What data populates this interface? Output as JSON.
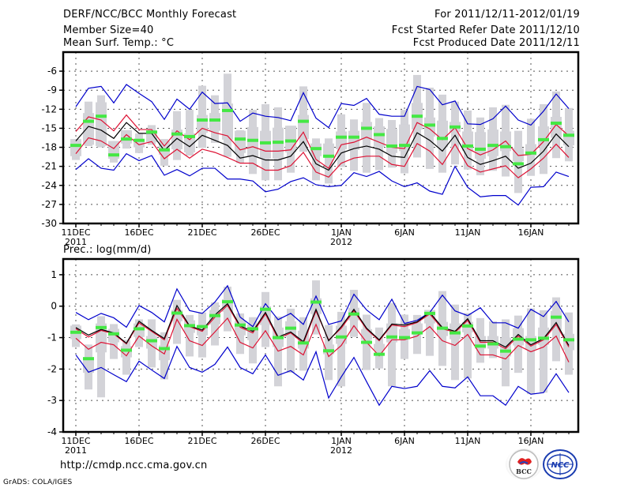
{
  "header": {
    "title": "DERF/NCC/BCC Monthly Forecast",
    "member_size": "Member Size=40",
    "variable_top": "Mean Surf. Temp.: °C",
    "period": "For 2011/12/11-2012/01/19",
    "start_date": "Fcst Started Refer Date 2011/12/10",
    "produced_date": "Fcst Produced Date 2011/12/11"
  },
  "footer": {
    "url": "http://cmdp.ncc.cma.gov.cn",
    "credit": "GrADS: COLA/IGES",
    "logos": [
      "BCC",
      "NCC"
    ]
  },
  "colors": {
    "spread_outer": "#0000cc",
    "spread_inner": "#dd1133",
    "mean": "#000000",
    "box": "#d3d3d8",
    "marker": "#44e844",
    "grid": "#555555"
  },
  "chart_data": [
    {
      "type": "line",
      "title": "Mean Surf. Temp.: °C",
      "xlabel": "",
      "ylabel": "",
      "ylim": [
        -30,
        -3
      ],
      "yticks": [
        -6,
        -9,
        -12,
        -15,
        -18,
        -21,
        -24,
        -27,
        -30
      ],
      "xticks": [
        {
          "day": 1,
          "label": "11DEC",
          "sub": "2011"
        },
        {
          "day": 6,
          "label": "16DEC",
          "sub": ""
        },
        {
          "day": 11,
          "label": "21DEC",
          "sub": ""
        },
        {
          "day": 16,
          "label": "26DEC",
          "sub": ""
        },
        {
          "day": 22,
          "label": "1JAN",
          "sub": "2012"
        },
        {
          "day": 27,
          "label": "6JAN",
          "sub": ""
        },
        {
          "day": 32,
          "label": "11JAN",
          "sub": ""
        },
        {
          "day": 37,
          "label": "16JAN",
          "sub": ""
        }
      ],
      "grid": true,
      "days": 40,
      "series": [
        {
          "name": "upper-outer",
          "color": "blue",
          "values": [
            -11.6,
            -8.7,
            -8.4,
            -11.0,
            -8.1,
            -9.5,
            -10.8,
            -13.6,
            -10.4,
            -12.0,
            -9.3,
            -11.1,
            -11.0,
            -13.9,
            -12.6,
            -13.1,
            -13.3,
            -13.8,
            -9.4,
            -13.4,
            -14.9,
            -11.1,
            -11.4,
            -10.3,
            -12.8,
            -13.1,
            -13.1,
            -8.4,
            -8.9,
            -11.3,
            -10.7,
            -14.3,
            -14.4,
            -13.5,
            -11.5,
            -13.7,
            -14.5,
            -12.3,
            -9.6,
            -11.9
          ]
        },
        {
          "name": "upper-inner",
          "color": "red",
          "values": [
            -15.5,
            -13.2,
            -13.7,
            -15.4,
            -12.9,
            -15.2,
            -15.2,
            -17.8,
            -15.4,
            -16.8,
            -15.0,
            -15.7,
            -16.2,
            -18.4,
            -17.9,
            -18.6,
            -18.6,
            -18.4,
            -15.6,
            -19.9,
            -21.3,
            -17.6,
            -17.2,
            -16.4,
            -17.2,
            -18.0,
            -18.2,
            -14.1,
            -15.1,
            -16.8,
            -14.9,
            -18.2,
            -19.2,
            -18.4,
            -17.0,
            -19.3,
            -19.1,
            -17.1,
            -14.4,
            -16.2
          ]
        },
        {
          "name": "ensemble-mean",
          "color": "black",
          "values": [
            -17.0,
            -14.7,
            -15.3,
            -16.6,
            -14.1,
            -15.8,
            -15.8,
            -18.5,
            -16.6,
            -17.9,
            -16.1,
            -16.9,
            -17.7,
            -19.7,
            -19.3,
            -20.0,
            -20.0,
            -19.4,
            -17.1,
            -20.6,
            -21.6,
            -18.9,
            -18.2,
            -17.8,
            -18.3,
            -19.4,
            -19.6,
            -15.7,
            -16.9,
            -18.6,
            -16.1,
            -19.6,
            -20.7,
            -20.1,
            -19.4,
            -21.3,
            -20.5,
            -18.6,
            -15.9,
            -17.9
          ]
        },
        {
          "name": "lower-inner",
          "color": "red",
          "values": [
            -19.0,
            -16.5,
            -17.0,
            -18.2,
            -16.0,
            -17.6,
            -17.1,
            -19.8,
            -18.3,
            -19.7,
            -18.3,
            -18.8,
            -19.6,
            -20.5,
            -20.5,
            -21.6,
            -21.6,
            -20.9,
            -18.8,
            -21.9,
            -22.7,
            -20.5,
            -19.7,
            -19.4,
            -19.4,
            -20.7,
            -21.0,
            -17.4,
            -18.6,
            -20.7,
            -17.5,
            -20.9,
            -21.9,
            -21.4,
            -20.9,
            -22.8,
            -21.4,
            -19.7,
            -17.5,
            -19.6
          ]
        },
        {
          "name": "lower-outer",
          "color": "blue",
          "values": [
            -21.5,
            -19.8,
            -21.3,
            -21.6,
            -19.0,
            -20.1,
            -19.3,
            -22.4,
            -21.5,
            -22.5,
            -21.3,
            -21.3,
            -23.0,
            -23.0,
            -23.3,
            -25.0,
            -24.6,
            -23.4,
            -22.8,
            -23.9,
            -24.2,
            -24.0,
            -22.0,
            -22.6,
            -21.8,
            -23.3,
            -24.2,
            -23.6,
            -24.9,
            -25.4,
            -21.0,
            -24.3,
            -25.8,
            -25.6,
            -25.6,
            -27.1,
            -24.3,
            -24.2,
            -21.9,
            -22.6
          ]
        }
      ],
      "boxes": {
        "description": "Gray bars: thin whisker range and wider inter-quartile range per day; green bar is the observed/median marker",
        "whisker_low": [
          -20.0,
          -17.8,
          -18.0,
          -20.4,
          -18.2,
          -18.9,
          -17.6,
          -20.9,
          -20.0,
          -19.3,
          -18.1,
          -17.3,
          -19.5,
          -20.5,
          -22.2,
          -23.2,
          -23.2,
          -22.0,
          -18.7,
          -23.2,
          -23.7,
          -21.1,
          -21.7,
          -22.0,
          -21.6,
          -21.2,
          -22.1,
          -19.6,
          -21.4,
          -22.0,
          -20.7,
          -21.5,
          -22.4,
          -21.7,
          -22.6,
          -25.2,
          -22.5,
          -22.2,
          -19.7,
          -20.2
        ],
        "whisker_high": [
          -16.7,
          -10.8,
          -9.8,
          -17.0,
          -15.3,
          -15.8,
          -14.5,
          -16.7,
          -12.3,
          -12.1,
          -8.3,
          -9.8,
          -6.4,
          -15.3,
          -12.1,
          -11.2,
          -11.7,
          -14.6,
          -8.4,
          -16.6,
          -16.6,
          -12.8,
          -13.6,
          -11.0,
          -13.4,
          -13.7,
          -12.1,
          -6.6,
          -8.6,
          -9.7,
          -10.8,
          -12.2,
          -13.3,
          -11.7,
          -11.3,
          -15.4,
          -13.5,
          -11.2,
          -9.2,
          -11.8
        ],
        "q1": [
          -19.4,
          -17.6,
          -17.8,
          -19.8,
          -17.4,
          -18.0,
          -17.2,
          -19.2,
          -18.3,
          -18.8,
          -15.7,
          -15.4,
          -16.8,
          -18.9,
          -19.5,
          -19.8,
          -19.8,
          -18.8,
          -16.7,
          -19.4,
          -19.6,
          -18.3,
          -18.4,
          -16.8,
          -17.9,
          -18.9,
          -18.6,
          -15.2,
          -16.3,
          -18.0,
          -15.6,
          -18.6,
          -19.8,
          -19.4,
          -18.6,
          -20.2,
          -19.3,
          -17.8,
          -16.5,
          -17.7
        ],
        "q3": [
          -16.7,
          -12.6,
          -10.9,
          -17.0,
          -15.3,
          -16.7,
          -15.4,
          -17.0,
          -15.2,
          -15.8,
          -12.9,
          -12.6,
          -11.1,
          -15.4,
          -14.8,
          -15.4,
          -14.9,
          -14.6,
          -12.9,
          -17.4,
          -17.4,
          -15.5,
          -15.4,
          -14.0,
          -14.7,
          -15.1,
          -14.4,
          -11.0,
          -13.3,
          -13.8,
          -14.0,
          -15.5,
          -15.6,
          -15.2,
          -15.5,
          -18.1,
          -17.5,
          -14.7,
          -13.2,
          -15.4
        ],
        "marker": [
          -17.7,
          -13.9,
          -13.1,
          -19.2,
          -16.7,
          -16.9,
          -15.6,
          -18.4,
          -15.9,
          -16.3,
          -13.7,
          -13.7,
          -12.2,
          -16.7,
          -16.9,
          -17.3,
          -17.2,
          -17.0,
          -13.9,
          -18.2,
          -19.4,
          -16.4,
          -16.4,
          -15.0,
          -16.0,
          -17.8,
          -17.7,
          -13.1,
          -14.5,
          -16.6,
          -14.8,
          -17.8,
          -18.3,
          -17.7,
          -17.9,
          -20.6,
          -18.9,
          -16.8,
          -14.2,
          -16.1
        ]
      }
    },
    {
      "type": "line",
      "title": "Prec.: log(mm/d)",
      "xlabel": "",
      "ylabel": "",
      "ylim": [
        -4,
        1.5
      ],
      "yticks": [
        1,
        0,
        -1,
        -2,
        -3,
        -4
      ],
      "xticks": [
        {
          "day": 1,
          "label": "11DEC",
          "sub": "2011"
        },
        {
          "day": 6,
          "label": "16DEC",
          "sub": ""
        },
        {
          "day": 11,
          "label": "21DEC",
          "sub": ""
        },
        {
          "day": 16,
          "label": "26DEC",
          "sub": ""
        },
        {
          "day": 22,
          "label": "1JAN",
          "sub": "2012"
        },
        {
          "day": 27,
          "label": "6JAN",
          "sub": ""
        },
        {
          "day": 32,
          "label": "11JAN",
          "sub": ""
        },
        {
          "day": 37,
          "label": "16JAN",
          "sub": ""
        }
      ],
      "grid": true,
      "days": 40,
      "series": [
        {
          "name": "upper-outer",
          "color": "blue",
          "values": [
            -0.2,
            -0.43,
            -0.23,
            -0.37,
            -0.67,
            0.02,
            -0.2,
            -0.5,
            0.55,
            -0.14,
            -0.23,
            0.13,
            0.65,
            -0.35,
            -0.65,
            0.08,
            -0.43,
            -0.23,
            -0.58,
            0.32,
            -0.58,
            -0.47,
            0.38,
            -0.12,
            -0.43,
            0.22,
            -0.55,
            -0.45,
            -0.2,
            0.35,
            -0.15,
            -0.3,
            -0.05,
            -0.53,
            -0.53,
            -0.7,
            -0.1,
            -0.33,
            0.15,
            -0.5
          ]
        },
        {
          "name": "upper-inner",
          "color": "red",
          "values": [
            -0.72,
            -0.98,
            -0.77,
            -0.88,
            -1.2,
            -0.53,
            -0.8,
            -1.07,
            -0.07,
            -0.65,
            -0.8,
            -0.35,
            0.03,
            -0.67,
            -0.85,
            -0.25,
            -1.03,
            -0.85,
            -1.18,
            -0.15,
            -1.08,
            -0.7,
            -0.15,
            -0.73,
            -1.1,
            -0.6,
            -0.65,
            -0.52,
            -0.25,
            -0.72,
            -0.83,
            -0.45,
            -1.15,
            -1.15,
            -1.35,
            -0.95,
            -1.27,
            -1.07,
            -0.58,
            -1.3
          ]
        },
        {
          "name": "ensemble-mean",
          "color": "black",
          "values": [
            -0.68,
            -0.92,
            -0.74,
            -0.85,
            -1.18,
            -0.48,
            -0.77,
            -1.03,
            0.02,
            -0.63,
            -0.76,
            -0.28,
            0.08,
            -0.63,
            -0.8,
            -0.2,
            -0.98,
            -0.82,
            -1.13,
            -0.1,
            -1.1,
            -0.65,
            -0.1,
            -0.7,
            -1.07,
            -0.57,
            -0.6,
            -0.5,
            -0.2,
            -0.68,
            -0.8,
            -0.4,
            -1.1,
            -1.1,
            -1.3,
            -0.9,
            -1.23,
            -1.03,
            -0.52,
            -1.25
          ]
        },
        {
          "name": "lower-inner",
          "color": "red",
          "values": [
            -1.02,
            -1.37,
            -1.15,
            -1.23,
            -1.58,
            -0.95,
            -1.26,
            -1.52,
            -0.42,
            -1.1,
            -1.25,
            -0.82,
            -0.38,
            -1.15,
            -1.33,
            -0.78,
            -1.43,
            -1.28,
            -1.55,
            -0.58,
            -1.6,
            -1.25,
            -0.62,
            -1.15,
            -1.58,
            -1.07,
            -1.07,
            -0.95,
            -0.65,
            -1.1,
            -1.25,
            -0.9,
            -1.55,
            -1.55,
            -1.68,
            -1.25,
            -1.45,
            -1.3,
            -0.95,
            -1.78
          ]
        },
        {
          "name": "lower-outer",
          "color": "blue",
          "values": [
            -1.55,
            -2.1,
            -1.95,
            -2.18,
            -2.4,
            -1.75,
            -2.03,
            -2.3,
            -1.28,
            -1.95,
            -2.1,
            -1.85,
            -1.3,
            -1.95,
            -2.15,
            -1.55,
            -2.2,
            -2.05,
            -2.35,
            -1.45,
            -2.92,
            -2.25,
            -1.63,
            -2.4,
            -3.15,
            -2.55,
            -2.62,
            -2.55,
            -2.05,
            -2.55,
            -2.6,
            -2.25,
            -2.85,
            -2.85,
            -3.15,
            -2.55,
            -2.8,
            -2.75,
            -2.15,
            -2.75
          ]
        },
        {
          "name": "reference",
          "color": "black",
          "values": []
        }
      ],
      "boxes": {
        "description": "Gray bars: whisker range and inter-quartile range per day; green bar marker",
        "whisker_low": [
          -1.3,
          -2.65,
          -2.9,
          -1.68,
          -2.18,
          -1.3,
          -1.95,
          -2.33,
          -1.2,
          -1.6,
          -1.63,
          -1.25,
          -0.8,
          -1.52,
          -1.82,
          -1.3,
          -2.55,
          -2.12,
          -2.05,
          -0.9,
          -2.35,
          -2.55,
          -0.98,
          -2.03,
          -1.98,
          -2.55,
          -1.68,
          -1.52,
          -1.58,
          -1.9,
          -2.35,
          -2.3,
          -1.8,
          -1.65,
          -2.55,
          -2.12,
          -2.8,
          -2.75,
          -1.75,
          -2.18
        ],
        "whisker_high": [
          -0.58,
          -1.22,
          -0.32,
          -0.57,
          -1.07,
          -0.42,
          -0.42,
          -0.83,
          0.2,
          -0.28,
          -0.2,
          0.12,
          0.62,
          -0.23,
          -0.35,
          0.45,
          -0.33,
          -0.08,
          -0.35,
          0.82,
          -0.6,
          -0.18,
          0.52,
          -0.27,
          -0.68,
          0.1,
          -0.27,
          -0.28,
          -0.15,
          0.48,
          0.05,
          -0.22,
          -0.38,
          -0.48,
          -0.42,
          -0.3,
          -0.07,
          -0.13,
          0.28,
          -0.2
        ],
        "q1": [
          -1.05,
          -2.12,
          -1.47,
          -1.15,
          -1.63,
          -0.98,
          -1.35,
          -1.72,
          -0.48,
          -0.85,
          -0.93,
          -0.58,
          -0.18,
          -0.93,
          -1.08,
          -0.6,
          -1.3,
          -0.98,
          -1.35,
          -0.25,
          -1.53,
          -1.2,
          -0.45,
          -1.07,
          -1.4,
          -1.15,
          -1.05,
          -0.88,
          -0.55,
          -0.95,
          -1.05,
          -0.83,
          -1.35,
          -1.35,
          -1.6,
          -1.25,
          -1.37,
          -1.23,
          -0.75,
          -1.4
        ],
        "q3": [
          -0.62,
          -1.62,
          -0.55,
          -0.72,
          -1.27,
          -0.55,
          -0.95,
          -1.25,
          -0.12,
          -0.45,
          -0.62,
          -0.12,
          0.22,
          -0.47,
          -0.58,
          0.0,
          -0.68,
          -0.48,
          -0.78,
          0.25,
          -1.22,
          -0.62,
          -0.05,
          -0.73,
          -1.2,
          -0.55,
          -0.73,
          -0.55,
          -0.12,
          -0.5,
          -0.55,
          -0.5,
          -0.95,
          -0.95,
          -1.0,
          -0.7,
          -0.95,
          -0.68,
          -0.15,
          -0.88
        ],
        "marker": [
          -0.83,
          -1.67,
          -0.68,
          -0.88,
          -1.4,
          -0.72,
          -1.1,
          -1.35,
          -0.22,
          -0.62,
          -0.65,
          -0.3,
          0.14,
          -0.6,
          -0.72,
          -0.1,
          -1.0,
          -0.7,
          -1.17,
          0.13,
          -1.42,
          -0.98,
          -0.25,
          -1.15,
          -1.53,
          -0.98,
          -1.0,
          -0.85,
          -0.23,
          -0.7,
          -0.85,
          -0.63,
          -1.27,
          -1.2,
          -1.43,
          -1.05,
          -1.07,
          -1.02,
          -0.35,
          -1.07
        ]
      }
    }
  ]
}
